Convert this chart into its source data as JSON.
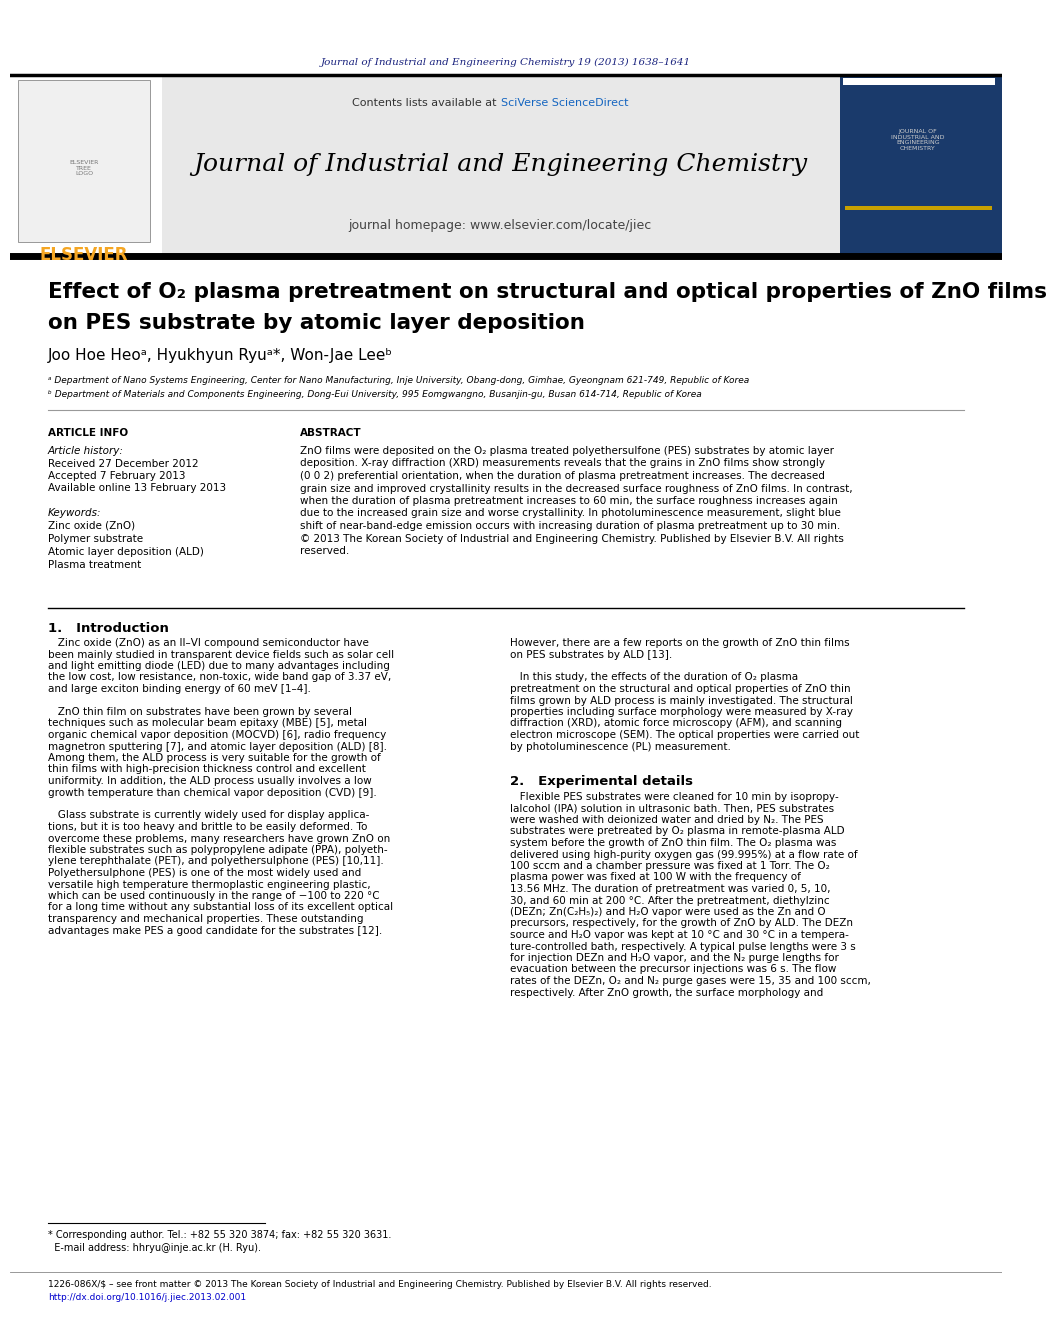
{
  "page_width": 9.92,
  "page_height": 13.23,
  "bg_color": "#ffffff",
  "journal_ref_text": "Journal of Industrial and Engineering Chemistry 19 (2013) 1638–1641",
  "journal_ref_color": "#1a237e",
  "journal_name": "Journal of Industrial and Engineering Chemistry",
  "contents_text": "Contents lists available at ",
  "sciverse_text": "SciVerse ScienceDirect",
  "homepage_text": "journal homepage: www.elsevier.com/locate/jiec",
  "header_bg": "#e8e8e8",
  "elsevier_color": "#f5a623",
  "title_line1": "Effect of O₂ plasma pretreatment on structural and optical properties of ZnO films",
  "title_line2": "on PES substrate by atomic layer deposition",
  "authors": "Joo Hoe Heoᵃ, Hyukhyun Ryuᵃ*, Won-Jae Leeᵇ",
  "affil_a": "ᵃ Department of Nano Systems Engineering, Center for Nano Manufacturing, Inje University, Obang-dong, Gimhae, Gyeongnam 621-749, Republic of Korea",
  "affil_b": "ᵇ Department of Materials and Components Engineering, Dong-Eui University, 995 Eomgwangno, Busanjin-gu, Busan 614-714, Republic of Korea",
  "article_info_label": "ARTICLE INFO",
  "abstract_label": "ABSTRACT",
  "article_history_label": "Article history:",
  "received_text": "Received 27 December 2012",
  "accepted_text": "Accepted 7 February 2013",
  "available_text": "Available online 13 February 2013",
  "keywords_label": "Keywords:",
  "keywords": [
    "Zinc oxide (ZnO)",
    "Polymer substrate",
    "Atomic layer deposition (ALD)",
    "Plasma treatment"
  ],
  "section1_title": "1.   Introduction",
  "section2_title": "2.   Experimental details",
  "link_color": "#0000cc",
  "dark_navy": "#1a237e",
  "sciverse_color": "#1565c0",
  "cover_bg": "#1a3a6b",
  "gold_color": "#c8a000"
}
